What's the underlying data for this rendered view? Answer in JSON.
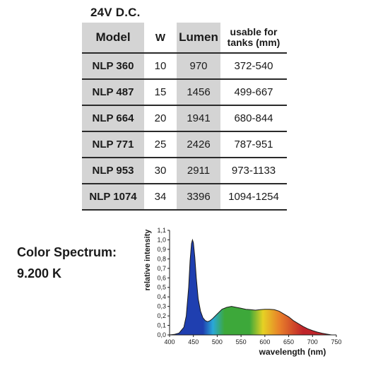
{
  "voltage": "24V D.C.",
  "table": {
    "headers": {
      "model": "Model",
      "watt": "W",
      "lumen": "Lumen",
      "usable_line1": "usable for",
      "usable_line2": "tanks (mm)"
    },
    "rows": [
      {
        "model": "NLP 360",
        "watt": "10",
        "lumen": "970",
        "usable": "372-540"
      },
      {
        "model": "NLP 487",
        "watt": "15",
        "lumen": "1456",
        "usable": "499-667"
      },
      {
        "model": "NLP 664",
        "watt": "20",
        "lumen": "1941",
        "usable": "680-844"
      },
      {
        "model": "NLP 771",
        "watt": "25",
        "lumen": "2426",
        "usable": "787-951"
      },
      {
        "model": "NLP  953",
        "watt": "30",
        "lumen": "2911",
        "usable": "973-1133"
      },
      {
        "model": "NLP 1074",
        "watt": "34",
        "lumen": "3396",
        "usable": "1094-1254"
      }
    ]
  },
  "spectrum": {
    "title_line1": "Color Spectrum:",
    "title_line2": "9.200 K"
  },
  "chart_data": {
    "type": "area",
    "xlabel": "wavelength  (nm)",
    "ylabel": "relative intensity",
    "xlim": [
      400,
      750
    ],
    "ylim": [
      0,
      1.1
    ],
    "x_ticks": [
      "400",
      "450",
      "500",
      "550",
      "600",
      "650",
      "700",
      "750"
    ],
    "y_ticks": [
      "0,0",
      "0,1",
      "0,2",
      "0,3",
      "0,4",
      "0,5",
      "0,6",
      "0,7",
      "0,8",
      "0,9",
      "1,0",
      "1,1"
    ],
    "x": [
      400,
      410,
      420,
      430,
      435,
      440,
      443,
      446,
      448,
      450,
      453,
      456,
      460,
      465,
      470,
      475,
      480,
      485,
      490,
      500,
      510,
      520,
      530,
      540,
      550,
      560,
      570,
      580,
      590,
      600,
      610,
      620,
      630,
      640,
      650,
      660,
      670,
      680,
      690,
      700,
      710,
      720,
      730,
      740
    ],
    "y": [
      0.0,
      0.005,
      0.02,
      0.08,
      0.2,
      0.5,
      0.78,
      0.96,
      1.0,
      0.97,
      0.82,
      0.6,
      0.38,
      0.25,
      0.18,
      0.15,
      0.14,
      0.15,
      0.17,
      0.22,
      0.27,
      0.29,
      0.3,
      0.29,
      0.28,
      0.27,
      0.265,
      0.26,
      0.265,
      0.27,
      0.27,
      0.265,
      0.25,
      0.22,
      0.19,
      0.15,
      0.12,
      0.09,
      0.065,
      0.045,
      0.03,
      0.018,
      0.008,
      0.0
    ],
    "grid": false,
    "fill": "visible-spectrum gradient",
    "colors": {
      "blue": "#1f3fb0",
      "cyan": "#2aa8d8",
      "green": "#3da83a",
      "yellow": "#e6d224",
      "orange": "#e8802a",
      "red": "#c0242a"
    }
  }
}
